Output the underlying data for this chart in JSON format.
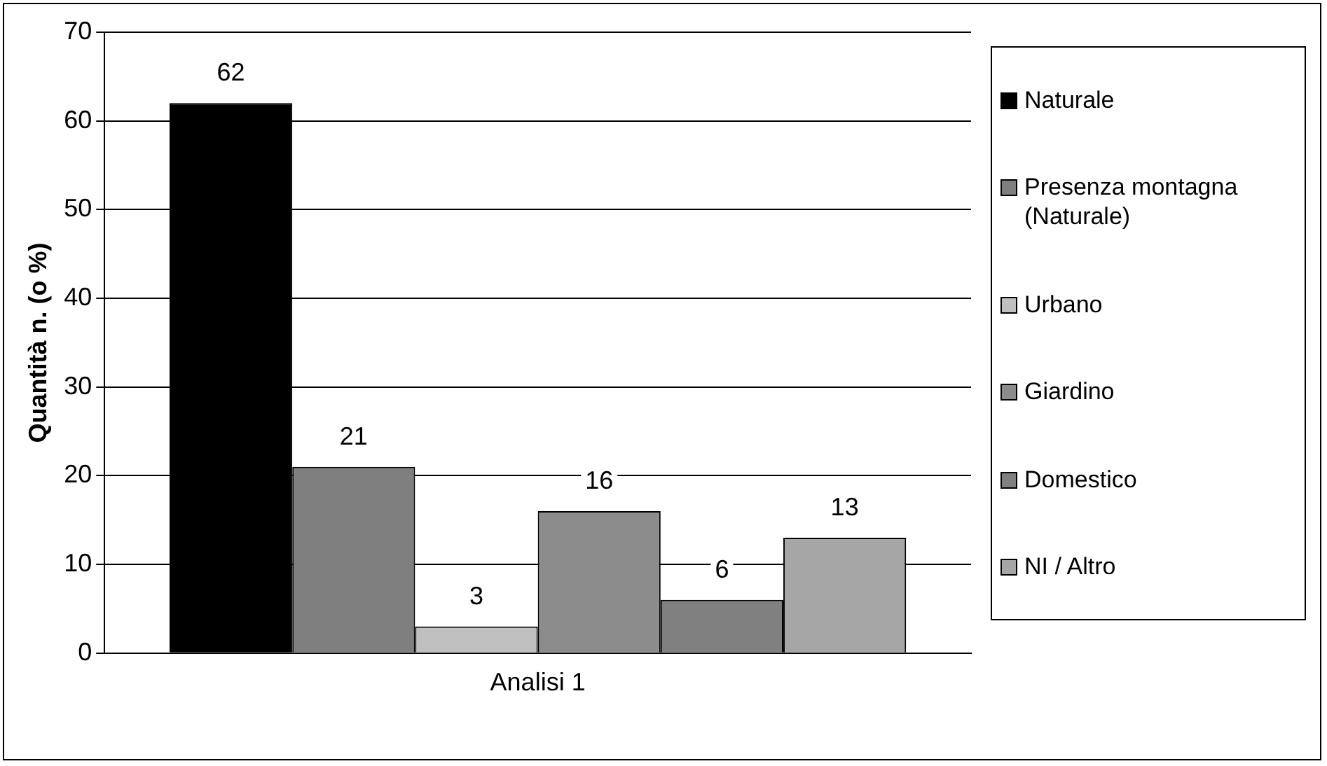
{
  "chart_data": {
    "type": "bar",
    "ylabel": "Quantità n. (o %)",
    "categories": [
      "Analisi 1"
    ],
    "series": [
      {
        "name": "Naturale",
        "color": "#000000",
        "values": [
          62
        ]
      },
      {
        "name": "Presenza montagna (Naturale)",
        "color": "#7f7f7f",
        "values": [
          21
        ]
      },
      {
        "name": "Urbano",
        "color": "#c0c0c0",
        "values": [
          3
        ]
      },
      {
        "name": "Giardino",
        "color": "#8c8c8c",
        "values": [
          16
        ]
      },
      {
        "name": "Domestico",
        "color": "#808080",
        "values": [
          6
        ]
      },
      {
        "name": "NI / Altro",
        "color": "#a6a6a6",
        "values": [
          13
        ]
      }
    ],
    "ylim": [
      0,
      70
    ],
    "yticks": [
      0,
      10,
      20,
      30,
      40,
      50,
      60,
      70
    ],
    "grid": "y",
    "legend": "right",
    "data_labels": true
  }
}
